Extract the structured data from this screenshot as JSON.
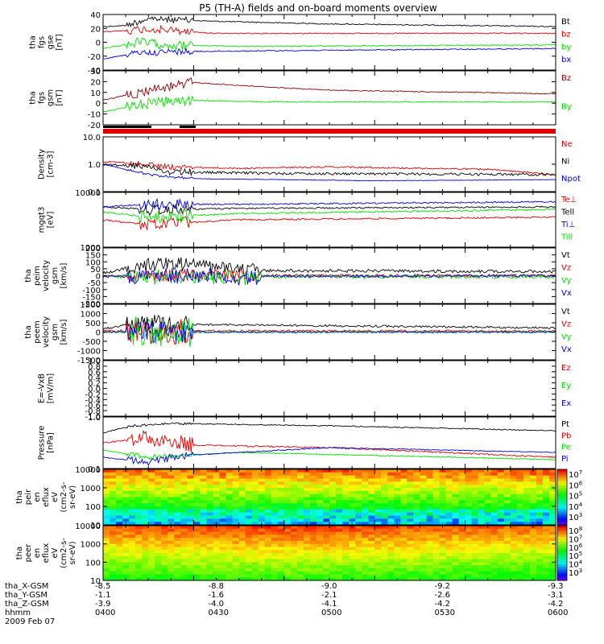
{
  "title": "P5 (TH-A) fields and on-board moments overview",
  "colors": {
    "black": "#000000",
    "red": "#e00000",
    "green": "#00e000",
    "blue": "#0000e0",
    "darkred": "#8b0000"
  },
  "chart_data": [
    {
      "type": "line",
      "ylabel": [
        "tha",
        "fgs",
        "gse",
        "[nT]"
      ],
      "yticks": [
        "40",
        "20",
        "0",
        "-20",
        "-40"
      ],
      "ylim": [
        -40,
        40
      ],
      "legend": [
        {
          "name": "Bt",
          "color": "black"
        },
        {
          "name": "bz",
          "color": "red"
        },
        {
          "name": "by",
          "color": "green"
        },
        {
          "name": "bx",
          "color": "blue"
        }
      ]
    },
    {
      "type": "line",
      "ylabel": [
        "tha",
        "fgs",
        "gsm",
        "[nT]"
      ],
      "yticks": [
        "30",
        "20",
        "10",
        "0",
        "-10",
        "-20"
      ],
      "ylim": [
        -25,
        30
      ],
      "legend": [
        {
          "name": "Bz",
          "color": "darkred"
        },
        {
          "name": "By",
          "color": "green"
        }
      ]
    },
    {
      "type": "line",
      "ylabel": [
        "Density",
        "[cm-3]"
      ],
      "yticks": [
        "10.0",
        "1.0",
        "0.1"
      ],
      "log": true,
      "legend": [
        {
          "name": "Ne",
          "color": "red"
        },
        {
          "name": "Ni",
          "color": "black"
        },
        {
          "name": "Npot",
          "color": "blue"
        }
      ]
    },
    {
      "type": "line",
      "ylabel": [
        "mgqt3",
        "[eV]"
      ],
      "yticks": [
        "10000",
        "1000"
      ],
      "log": true,
      "legend": [
        {
          "name": "Te⊥",
          "color": "red"
        },
        {
          "name": "Tell",
          "color": "black"
        },
        {
          "name": "Ti⊥",
          "color": "blue"
        },
        {
          "name": "Till",
          "color": "green"
        }
      ]
    },
    {
      "type": "line",
      "ylabel": [
        "tha",
        "peim",
        "velocity",
        "gsm",
        "[km/s]"
      ],
      "yticks": [
        "200",
        "150",
        "100",
        "50",
        "0",
        "-50",
        "-100",
        "-150",
        "-200"
      ],
      "ylim": [
        -200,
        200
      ],
      "legend": [
        {
          "name": "Vt",
          "color": "black"
        },
        {
          "name": "Vz",
          "color": "red"
        },
        {
          "name": "Vy",
          "color": "green"
        },
        {
          "name": "Vx",
          "color": "blue"
        }
      ]
    },
    {
      "type": "line",
      "ylabel": [
        "tha",
        "peem",
        "velocity",
        "gsm",
        "[km/s]"
      ],
      "yticks": [
        "1500",
        "1000",
        "500",
        "0",
        "-500",
        "-1000",
        "-1500"
      ],
      "ylim": [
        -1500,
        1500
      ],
      "legend": [
        {
          "name": "Vt",
          "color": "black"
        },
        {
          "name": "Vz",
          "color": "red"
        },
        {
          "name": "Vy",
          "color": "green"
        },
        {
          "name": "Vx",
          "color": "blue"
        }
      ]
    },
    {
      "type": "line",
      "ylabel": [
        "E=-VxB",
        "[mV/m]"
      ],
      "yticks": [
        "1.0",
        "0.8",
        "0.6",
        "0.4",
        "0.2",
        "0.0",
        "-0.2",
        "-0.4",
        "-0.6",
        "-0.8",
        "-1.0"
      ],
      "ylim": [
        -1,
        1
      ],
      "legend": [
        {
          "name": "Ez",
          "color": "red"
        },
        {
          "name": "Ey",
          "color": "green"
        },
        {
          "name": "Ex",
          "color": "blue"
        }
      ]
    },
    {
      "type": "line",
      "ylabel": [
        "Pressure",
        "[nPa]"
      ],
      "yticks": [
        "1.0",
        "0.1"
      ],
      "log": true,
      "legend": [
        {
          "name": "Pt",
          "color": "black"
        },
        {
          "name": "Pb",
          "color": "red"
        },
        {
          "name": "Pe",
          "color": "green"
        },
        {
          "name": "Pi",
          "color": "blue"
        }
      ]
    },
    {
      "type": "heatmap",
      "ylabel": [
        "tha",
        "peir",
        "en",
        "eflux",
        "eV",
        "(cm2-s-",
        "sr-eV)"
      ],
      "yticks": [
        "10000",
        "1000",
        "100",
        "10"
      ],
      "colorbar": [
        {
          "label": "10",
          "exp": "7"
        },
        {
          "label": "10",
          "exp": "6"
        },
        {
          "label": "10",
          "exp": "5"
        },
        {
          "label": "10",
          "exp": "4"
        },
        {
          "label": "10",
          "exp": "3"
        }
      ]
    },
    {
      "type": "heatmap",
      "ylabel": [
        "tha",
        "peer",
        "en",
        "eflux",
        "eV",
        "(cm2-s-",
        "sr-eV)"
      ],
      "yticks": [
        "10000",
        "1000",
        "100",
        "10"
      ],
      "colorbar": [
        {
          "label": "10",
          "exp": "8"
        },
        {
          "label": "10",
          "exp": "7"
        },
        {
          "label": "10",
          "exp": "6"
        },
        {
          "label": "10",
          "exp": "5"
        },
        {
          "label": "10",
          "exp": "4"
        },
        {
          "label": "10",
          "exp": "3"
        }
      ]
    }
  ],
  "xaxis": {
    "row_labels": [
      "tha_X-GSM",
      "tha_Y-GSM",
      "tha_Z-GSM",
      "hhmm",
      "2009 Feb 07"
    ],
    "columns": [
      {
        "x": "-8.5",
        "y": "-1.1",
        "z": "-3.9",
        "t": "0400"
      },
      {
        "x": "-8.8",
        "y": "-1.6",
        "z": "-4.0",
        "t": "0430"
      },
      {
        "x": "-9.0",
        "y": "-2.1",
        "z": "-4.1",
        "t": "0500"
      },
      {
        "x": "-9.2",
        "y": "-2.6",
        "z": "-4.2",
        "t": "0530"
      },
      {
        "x": "-9.3",
        "y": "-3.1",
        "z": "-4.2",
        "t": "0600"
      }
    ]
  }
}
